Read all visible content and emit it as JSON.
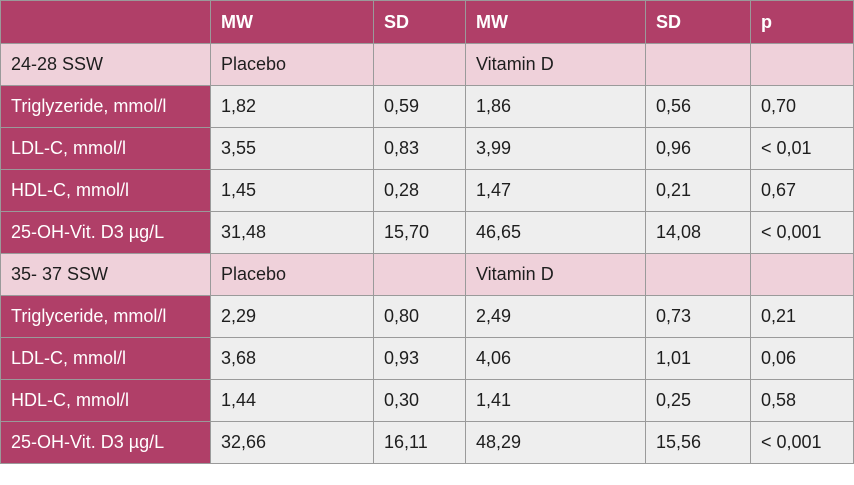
{
  "header": [
    "",
    "MW",
    "SD",
    "MW",
    "SD",
    "p"
  ],
  "rows": [
    {
      "type": "section",
      "cells": [
        "24-28 SSW",
        "Placebo",
        "",
        "Vitamin D",
        "",
        ""
      ]
    },
    {
      "type": "data",
      "cells": [
        "Triglyzeride, mmol/l",
        "1,82",
        "0,59",
        "1,86",
        "0,56",
        "0,70"
      ]
    },
    {
      "type": "data",
      "cells": [
        "LDL-C, mmol/l",
        "3,55",
        "0,83",
        "3,99",
        "0,96",
        "< 0,01"
      ]
    },
    {
      "type": "data",
      "cells": [
        "HDL-C, mmol/l",
        "1,45",
        "0,28",
        "1,47",
        "0,21",
        "0,67"
      ]
    },
    {
      "type": "data",
      "cells": [
        "25-OH-Vit. D3 µg/L",
        "31,48",
        "15,70",
        "46,65",
        "14,08",
        "< 0,001"
      ]
    },
    {
      "type": "section",
      "cells": [
        "35- 37 SSW",
        "Placebo",
        "",
        "Vitamin D",
        "",
        ""
      ]
    },
    {
      "type": "data",
      "cells": [
        "Triglyceride, mmol/l",
        "2,29",
        "0,80",
        "2,49",
        "0,73",
        "0,21"
      ]
    },
    {
      "type": "data",
      "cells": [
        "LDL-C, mmol/l",
        "3,68",
        "0,93",
        "4,06",
        "1,01",
        "0,06"
      ]
    },
    {
      "type": "data",
      "cells": [
        "HDL-C, mmol/l",
        "1,44",
        "0,30",
        "1,41",
        "0,25",
        "0,58"
      ]
    },
    {
      "type": "data",
      "cells": [
        "25-OH-Vit. D3 µg/L",
        "32,66",
        "16,11",
        "48,29",
        "15,56",
        "< 0,001"
      ]
    }
  ],
  "colors": {
    "header_bg": "#b03f68",
    "section_bg": "#efd1da",
    "value_bg": "#eeeeee",
    "border": "#9a9a9a"
  }
}
